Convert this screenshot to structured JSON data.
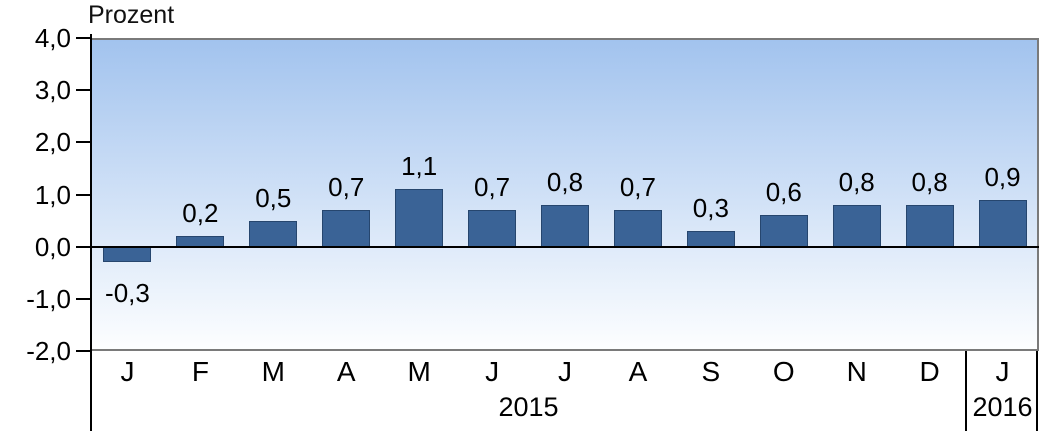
{
  "chart_data": {
    "type": "bar",
    "title": "Prozent",
    "categories": [
      "J",
      "F",
      "M",
      "A",
      "M",
      "J",
      "J",
      "A",
      "S",
      "O",
      "N",
      "D",
      "J"
    ],
    "values": [
      -0.3,
      0.2,
      0.5,
      0.7,
      1.1,
      0.7,
      0.8,
      0.7,
      0.3,
      0.6,
      0.8,
      0.8,
      0.9
    ],
    "value_labels": [
      "-0,3",
      "0,2",
      "0,5",
      "0,7",
      "1,1",
      "0,7",
      "0,8",
      "0,7",
      "0,3",
      "0,6",
      "0,8",
      "0,8",
      "0,9"
    ],
    "xlabel": "",
    "ylabel": "Prozent",
    "ylim": [
      -2.0,
      4.0
    ],
    "ytick_values": [
      4.0,
      3.0,
      2.0,
      1.0,
      0.0,
      -1.0,
      -2.0
    ],
    "ytick_labels": [
      "4,0",
      "3,0",
      "2,0",
      "1,0",
      "0,0",
      "-1,0",
      "-2,0"
    ],
    "year_groups": [
      {
        "label": "2015",
        "months": 12
      },
      {
        "label": "2016",
        "months": 1
      }
    ],
    "grid": false,
    "legend_position": "none",
    "colors": {
      "bar_fill": "#3a6396",
      "bar_border": "#26466e",
      "plot_bg_top": "#a2c3ee",
      "plot_bg_bottom": "#fdfeff",
      "plot_border": "#7a7a7a",
      "axis": "#000000",
      "text": "#000000"
    }
  }
}
